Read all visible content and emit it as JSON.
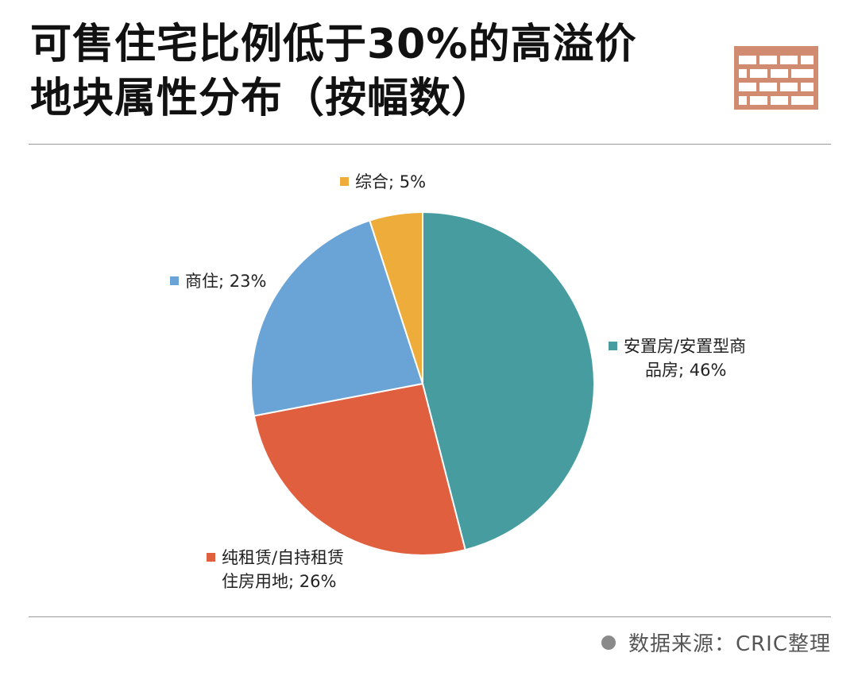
{
  "header": {
    "title_line1": "可售住宅比例低于30%的高溢价",
    "title_line2": "地块属性分布（按幅数）",
    "icon": "brick-wall-icon"
  },
  "chart_data": {
    "type": "pie",
    "start_angle_deg": 0,
    "direction": "clockwise",
    "slices": [
      {
        "label_line1": "安置房/安置型商",
        "label_line2": "品房; 46%",
        "value": 46,
        "color": "#469c9f"
      },
      {
        "label_line1": "纯租赁/自持租赁",
        "label_line2": "住房用地; 26%",
        "value": 26,
        "color": "#e05f3f"
      },
      {
        "label_line1": "商住; 23%",
        "label_line2": "",
        "value": 23,
        "color": "#6aa3d5"
      },
      {
        "label_line1": "综合; 5%",
        "label_line2": "",
        "value": 5,
        "color": "#eeac3b"
      }
    ]
  },
  "footer": {
    "source": "数据来源：CRIC整理"
  }
}
